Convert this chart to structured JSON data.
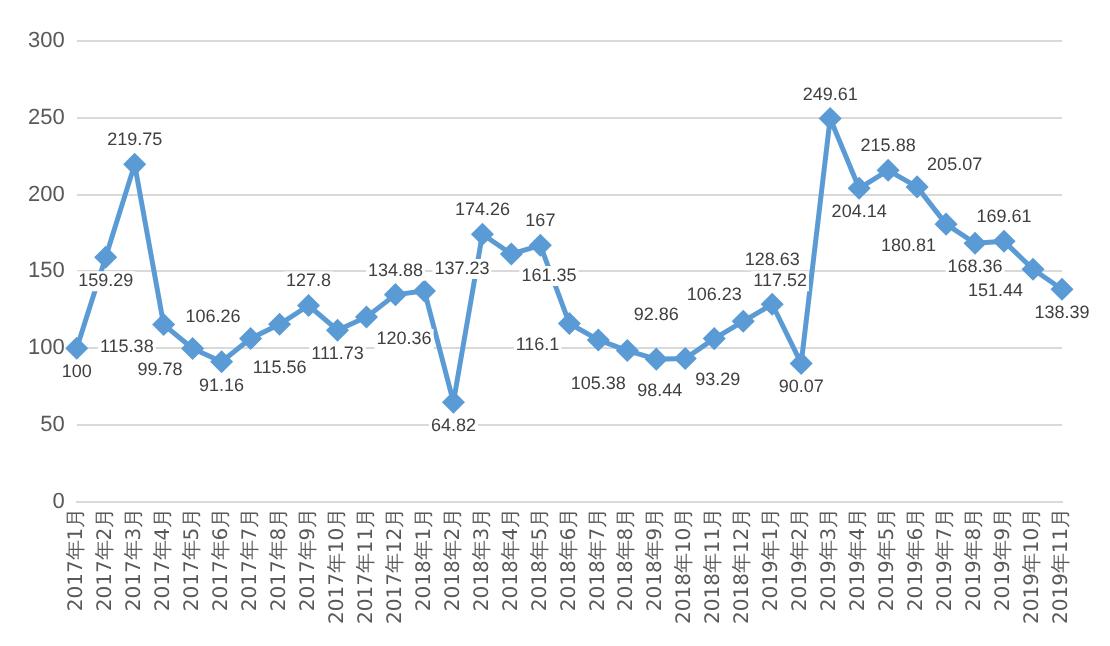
{
  "chart_data": {
    "type": "line",
    "categories": [
      "2017年1月",
      "2017年2月",
      "2017年3月",
      "2017年4月",
      "2017年5月",
      "2017年6月",
      "2017年7月",
      "2017年8月",
      "2017年9月",
      "2017年10月",
      "2017年11月",
      "2017年12月",
      "2018年1月",
      "2018年2月",
      "2018年3月",
      "2018年4月",
      "2018年5月",
      "2018年6月",
      "2018年7月",
      "2018年8月",
      "2018年9月",
      "2018年10月",
      "2018年11月",
      "2018年12月",
      "2019年1月",
      "2019年2月",
      "2019年3月",
      "2019年4月",
      "2019年5月",
      "2019年6月",
      "2019年7月",
      "2019年8月",
      "2019年9月",
      "2019年10月",
      "2019年11月"
    ],
    "series": [
      {
        "color": "#5b9bd5",
        "values": [
          100,
          159.29,
          219.75,
          115.38,
          99.78,
          91.16,
          106.26,
          115.56,
          127.8,
          111.73,
          120.36,
          134.88,
          137.23,
          64.82,
          174.26,
          161.35,
          167,
          116.1,
          105.38,
          98.44,
          92.86,
          93.29,
          106.23,
          117.52,
          128.63,
          90.07,
          249.61,
          204.14,
          215.88,
          205.07,
          180.81,
          168.36,
          169.61,
          151.44,
          138.39
        ]
      }
    ],
    "ylim": [
      0,
      300
    ],
    "yticks": [
      0,
      50,
      100,
      150,
      200,
      250,
      300
    ],
    "grid": "y",
    "marker": "diamond",
    "line_style": "solid",
    "data_labels": true,
    "legend": false
  }
}
